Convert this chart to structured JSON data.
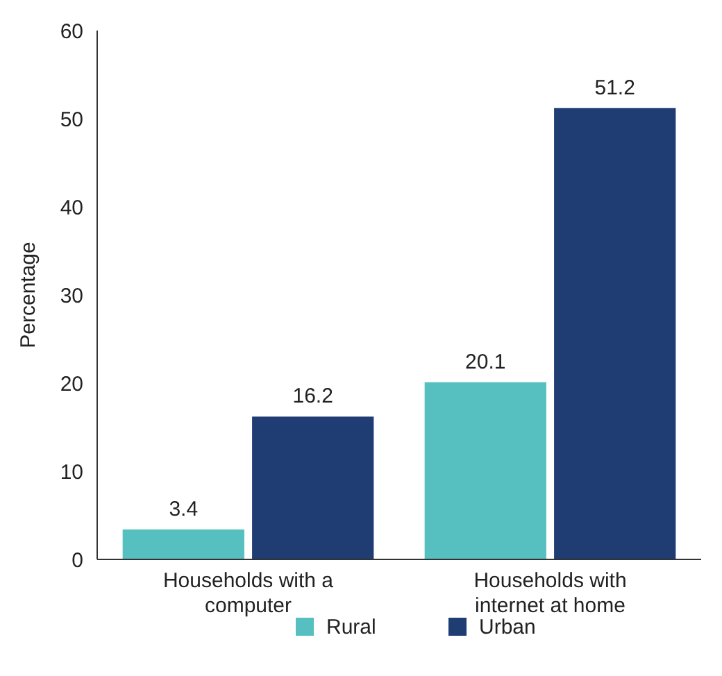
{
  "chart_data": {
    "type": "bar",
    "ylabel": "Percentage",
    "categories": [
      "Households with a computer",
      "Households with internet at home"
    ],
    "series": [
      {
        "name": "Rural",
        "color": "#56bfc0",
        "values": [
          3.4,
          20.1
        ]
      },
      {
        "name": "Urban",
        "color": "#1f3c73",
        "values": [
          16.2,
          51.2
        ]
      }
    ],
    "ylim": [
      0,
      60
    ],
    "yticks": [
      0,
      10,
      20,
      30,
      40,
      50,
      60
    ],
    "data_labels": true,
    "legend": "bottom",
    "grid": false
  }
}
